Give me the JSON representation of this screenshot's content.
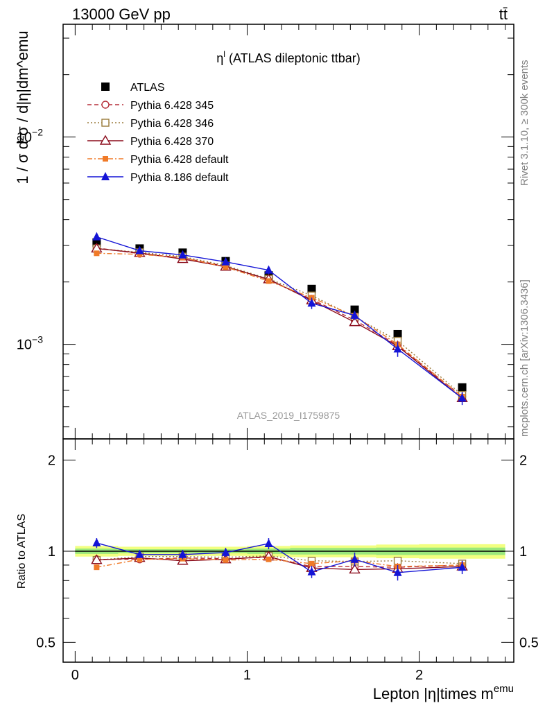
{
  "header": {
    "energy_label": "13000 GeV pp",
    "process_label": "tt̄"
  },
  "side_labels": {
    "rivet": "Rivet 3.1.10, ≥ 300k events",
    "mcplots": "mcplots.cern.ch [arXiv:1306.3436]"
  },
  "watermark": "ATLAS_2019_I1759875",
  "chart_data": [
    {
      "type": "line",
      "panel": "main",
      "title": "η^l (ATLAS dileptonic ttbar)",
      "title_parts": {
        "base": "η",
        "sup": "l",
        "rest": " (ATLAS dileptonic ttbar)"
      },
      "ylabel": "1 / σ d²σ / d|η|dm^emu",
      "yscale": "log",
      "ylim": [
        0.00035,
        0.035
      ],
      "xlim": [
        -0.07,
        2.55
      ],
      "yticks": [
        {
          "value": 0.01,
          "base": "10",
          "exp": "−2"
        },
        {
          "value": 0.001,
          "base": "10",
          "exp": "−3"
        }
      ],
      "grid": false,
      "legend_position": "top-left",
      "x": [
        0.125,
        0.375,
        0.625,
        0.875,
        1.125,
        1.375,
        1.625,
        1.875,
        2.25
      ],
      "series": [
        {
          "name": "ATLAS",
          "color": "#000000",
          "marker": "filled-square",
          "line": "none",
          "values": [
            0.0031,
            0.0029,
            0.00277,
            0.00252,
            0.00215,
            0.00185,
            0.00147,
            0.00112,
            0.00062
          ]
        },
        {
          "name": "Pythia 6.428 345",
          "color": "#b52e38",
          "marker": "open-circle",
          "line": "dashed",
          "values": [
            0.00292,
            0.00274,
            0.00262,
            0.00238,
            0.00205,
            0.00165,
            0.00131,
            0.00099,
            0.00056
          ]
        },
        {
          "name": "Pythia 6.428 346",
          "color": "#9a7a3a",
          "marker": "open-square",
          "line": "dotted",
          "values": [
            0.0029,
            0.00278,
            0.00265,
            0.0024,
            0.00207,
            0.00172,
            0.00136,
            0.00104,
            0.00057
          ]
        },
        {
          "name": "Pythia 6.428 370",
          "color": "#8b0c1c",
          "marker": "open-triangle",
          "line": "solid",
          "values": [
            0.0029,
            0.00276,
            0.00258,
            0.00237,
            0.00206,
            0.00163,
            0.00128,
            0.00098,
            0.00055
          ]
        },
        {
          "name": "Pythia 6.428 default",
          "color": "#f07a28",
          "marker": "filled-square-small",
          "line": "dashdot",
          "values": [
            0.00275,
            0.00272,
            0.00262,
            0.00236,
            0.00202,
            0.00168,
            0.00137,
            0.001,
            0.00056
          ]
        },
        {
          "name": "Pythia 8.186 default",
          "color": "#1414d6",
          "marker": "filled-triangle",
          "line": "solid",
          "values": [
            0.0033,
            0.00283,
            0.0027,
            0.0025,
            0.00228,
            0.00158,
            0.00138,
            0.00095,
            0.00055
          ],
          "errors": [
            0.00012,
            6e-05,
            6e-05,
            7e-05,
            0.0001,
            0.0001,
            7e-05,
            8e-05,
            4e-05
          ]
        }
      ]
    },
    {
      "type": "line",
      "panel": "ratio",
      "ylabel": "Ratio to ATLAS",
      "xlabel": "Lepton |η|times m^emu",
      "xlabel_parts": {
        "base": "Lepton |η|times m",
        "sup": "emu"
      },
      "yscale": "log",
      "ylim": [
        0.43,
        2.35
      ],
      "yticks": [
        0.5,
        1,
        2
      ],
      "ytick_labels": [
        "0.5",
        "1",
        "2"
      ],
      "xticks": [
        0,
        1,
        2
      ],
      "xtick_labels": [
        "0",
        "1",
        "2"
      ],
      "reference": 1,
      "x": [
        0.125,
        0.375,
        0.625,
        0.875,
        1.125,
        1.375,
        1.625,
        1.875,
        2.25
      ],
      "series": [
        {
          "name": "Pythia 6.428 345",
          "values": [
            0.94,
            0.94,
            0.95,
            0.945,
            0.955,
            0.89,
            0.89,
            0.885,
            0.9
          ]
        },
        {
          "name": "Pythia 6.428 346",
          "values": [
            0.935,
            0.96,
            0.96,
            0.955,
            0.965,
            0.93,
            0.925,
            0.93,
            0.91
          ]
        },
        {
          "name": "Pythia 6.428 370",
          "values": [
            0.935,
            0.95,
            0.93,
            0.94,
            0.96,
            0.88,
            0.87,
            0.875,
            0.89
          ]
        },
        {
          "name": "Pythia 6.428 default",
          "values": [
            0.885,
            0.94,
            0.945,
            0.935,
            0.94,
            0.91,
            0.93,
            0.89,
            0.9
          ]
        },
        {
          "name": "Pythia 8.186 default",
          "values": [
            1.065,
            0.975,
            0.975,
            0.99,
            1.06,
            0.855,
            0.94,
            0.85,
            0.885
          ],
          "errors": [
            0.04,
            0.025,
            0.035,
            0.035,
            0.045,
            0.04,
            0.05,
            0.05,
            0.045
          ]
        }
      ],
      "band": {
        "x": [
          0.0,
          0.25,
          0.5,
          0.75,
          1.0,
          1.25,
          1.5,
          1.75,
          2.0,
          2.5
        ],
        "inner_lo": [
          0.98,
          0.985,
          0.985,
          0.985,
          0.98,
          0.975,
          0.975,
          0.972,
          0.972
        ],
        "inner_hi": [
          1.02,
          1.015,
          1.015,
          1.015,
          1.02,
          1.025,
          1.025,
          1.028,
          1.028
        ],
        "outer_lo": [
          0.96,
          0.965,
          0.965,
          0.965,
          0.96,
          0.955,
          0.955,
          0.948,
          0.945
        ],
        "outer_hi": [
          1.04,
          1.035,
          1.035,
          1.035,
          1.04,
          1.045,
          1.045,
          1.052,
          1.055
        ]
      }
    }
  ]
}
